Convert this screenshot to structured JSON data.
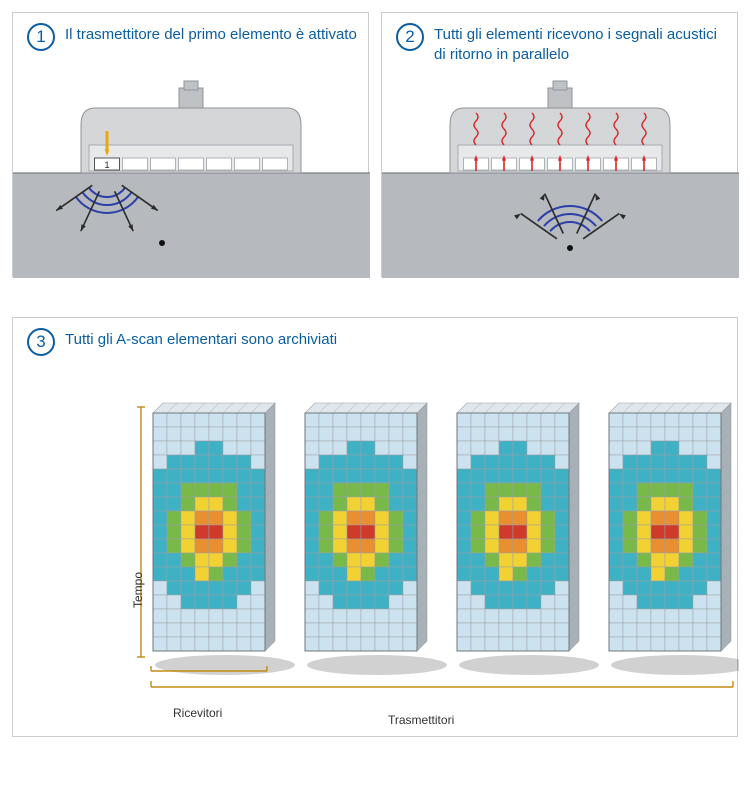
{
  "colors": {
    "accent": "#0a5ea3",
    "panel_border": "#c9cdd1",
    "probe_body": "#d4d6d8",
    "probe_body_dark": "#bfc2c5",
    "probe_inner": "#e7e8ea",
    "element_box": "#ffffff",
    "element_box_border": "#9ea3a8",
    "medium": "#b6b9bd",
    "wave": "#2a3fa8",
    "red_signal": "#d42a2a",
    "arrow_dark": "#2b2b2b",
    "fire_arrow": "#e9a80f",
    "axis": "#c38a12",
    "heat": {
      "bg": "#cde2ef",
      "c1": "#3fb1c4",
      "c2": "#79b94a",
      "c3": "#f2d233",
      "c4": "#e98f2f",
      "c5": "#cf3a2b",
      "grid": "#9aa0a5"
    }
  },
  "panels": {
    "p1": {
      "number": "1",
      "title": "Il trasmettitore del primo elemento è attivato",
      "probe": {
        "n_elements": 7,
        "fire_element_index": 0
      }
    },
    "p2": {
      "number": "2",
      "title": "Tutti gli elementi ricevono i segnali acustici di ritorno in parallelo",
      "probe": {
        "n_elements": 7
      }
    },
    "p3": {
      "number": "3",
      "title": "Tutti gli A-scan elementari sono archiviati",
      "y_label": "Tempo",
      "x_label_left": "Ricevitori",
      "x_label_right": "Trasmettitori",
      "matrix": {
        "cols": 8,
        "rows": 17,
        "values": [
          [
            0,
            0,
            0,
            0,
            0,
            0,
            0,
            0
          ],
          [
            0,
            0,
            0,
            0,
            0,
            0,
            0,
            0
          ],
          [
            0,
            0,
            0,
            1,
            1,
            0,
            0,
            0
          ],
          [
            0,
            1,
            1,
            1,
            1,
            1,
            1,
            0
          ],
          [
            1,
            1,
            1,
            1,
            1,
            1,
            1,
            1
          ],
          [
            1,
            1,
            2,
            2,
            2,
            2,
            1,
            1
          ],
          [
            1,
            1,
            2,
            3,
            3,
            2,
            1,
            1
          ],
          [
            1,
            2,
            3,
            4,
            4,
            3,
            2,
            1
          ],
          [
            1,
            2,
            3,
            5,
            5,
            3,
            2,
            1
          ],
          [
            1,
            2,
            3,
            4,
            4,
            3,
            2,
            1
          ],
          [
            1,
            1,
            2,
            3,
            3,
            2,
            1,
            1
          ],
          [
            1,
            1,
            1,
            3,
            2,
            1,
            1,
            1
          ],
          [
            0,
            1,
            1,
            1,
            1,
            1,
            1,
            0
          ],
          [
            0,
            0,
            1,
            1,
            1,
            1,
            0,
            0
          ],
          [
            0,
            0,
            0,
            0,
            0,
            0,
            0,
            0
          ],
          [
            0,
            0,
            0,
            0,
            0,
            0,
            0,
            0
          ],
          [
            0,
            0,
            0,
            0,
            0,
            0,
            0,
            0
          ]
        ]
      },
      "n_blocks": 4
    }
  }
}
